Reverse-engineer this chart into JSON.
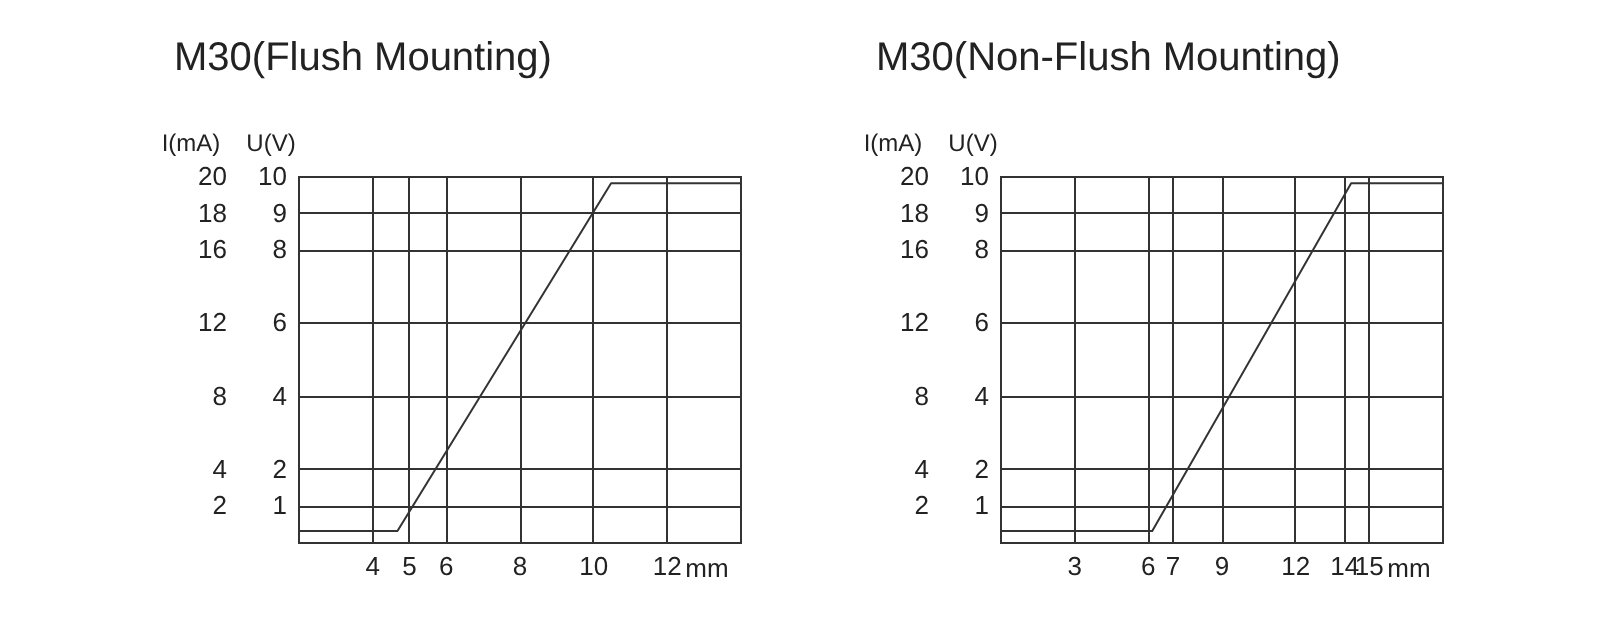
{
  "chart_data": [
    {
      "type": "line",
      "title": "M30(Flush Mounting)",
      "ylabel": "U(V)",
      "y2label": "I(mA)",
      "xlabel": "mm",
      "xlim": [
        2,
        14
      ],
      "xticks": [
        4,
        5,
        6,
        8,
        10,
        12
      ],
      "ylim": [
        0,
        10
      ],
      "yticks": [
        1,
        2,
        4,
        6,
        8,
        9,
        10
      ],
      "y2lim": [
        0,
        20
      ],
      "y2ticks": [
        2,
        4,
        8,
        12,
        16,
        18,
        20
      ],
      "grid": true,
      "series": [
        {
          "color": "#333333",
          "x": [
            2,
            4.7,
            10.5,
            14
          ],
          "values": [
            0.3,
            0.3,
            9.8,
            9.8
          ]
        }
      ]
    },
    {
      "type": "line",
      "title": "M30(Non-Flush Mounting)",
      "ylabel": "U(V)",
      "y2label": "I(mA)",
      "xlabel": "mm",
      "xlim": [
        0,
        18
      ],
      "xticks": [
        3,
        6,
        7,
        9,
        12,
        14,
        15
      ],
      "ylim": [
        0,
        10
      ],
      "yticks": [
        1,
        2,
        4,
        6,
        8,
        9,
        10
      ],
      "y2lim": [
        0,
        20
      ],
      "y2ticks": [
        2,
        4,
        8,
        12,
        16,
        18,
        20
      ],
      "grid": true,
      "series": [
        {
          "color": "#333333",
          "x": [
            0,
            6.2,
            14.3,
            18
          ],
          "values": [
            0.3,
            0.3,
            9.8,
            9.8
          ]
        }
      ]
    }
  ]
}
